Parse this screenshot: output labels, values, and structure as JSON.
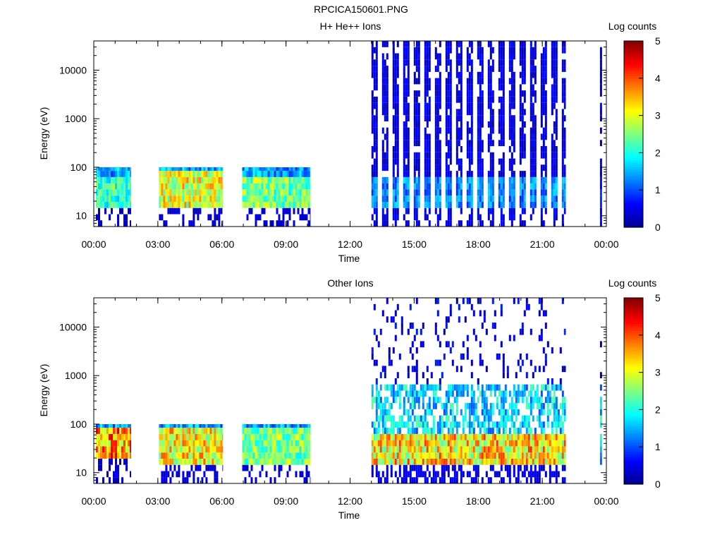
{
  "figure_title": "RPCICA150601.PNG",
  "colorbar": {
    "label": "Log counts",
    "min": 0,
    "max": 5,
    "ticks": [
      "0",
      "1",
      "2",
      "3",
      "4",
      "5"
    ],
    "colors": [
      "#00008f",
      "#0000ff",
      "#0080ff",
      "#00ffff",
      "#80ff80",
      "#ffff00",
      "#ff8000",
      "#ff0000",
      "#800000"
    ]
  },
  "chart_data": [
    {
      "type": "heatmap",
      "title": "H+ He++ Ions",
      "xlabel": "Time",
      "ylabel": "Energy (eV)",
      "xlim": [
        0,
        24
      ],
      "ylim": [
        6,
        40000
      ],
      "yscale": "log",
      "x_ticks": [
        "00:00",
        "03:00",
        "06:00",
        "09:00",
        "12:00",
        "15:00",
        "18:00",
        "21:00",
        "00:00"
      ],
      "y_ticks": [
        "10",
        "100",
        "1000",
        "10000"
      ],
      "intervals": [
        {
          "start": 0.1,
          "end": 1.75,
          "emax": 100,
          "core_low": 15,
          "core_high": 60,
          "peak": 2.6,
          "profile": "low"
        },
        {
          "start": 3.05,
          "end": 6.05,
          "emax": 100,
          "core_low": 13,
          "core_high": 80,
          "peak": 3.6,
          "profile": "low"
        },
        {
          "start": 6.95,
          "end": 10.15,
          "emax": 100,
          "core_low": 14,
          "core_high": 70,
          "peak": 3.0,
          "profile": "low"
        },
        {
          "start": 13.0,
          "end": 22.1,
          "emax": 40000,
          "core_low": 20,
          "core_high": 60,
          "peak": 1.6,
          "profile": "striped"
        },
        {
          "start": 23.7,
          "end": 23.8,
          "emax": 40000,
          "core_low": 20,
          "core_high": 60,
          "peak": 1.0,
          "profile": "striped"
        }
      ]
    },
    {
      "type": "heatmap",
      "title": "Other Ions",
      "xlabel": "Time",
      "ylabel": "Energy (eV)",
      "xlim": [
        0,
        24
      ],
      "ylim": [
        6,
        40000
      ],
      "yscale": "log",
      "x_ticks": [
        "00:00",
        "03:00",
        "06:00",
        "09:00",
        "12:00",
        "15:00",
        "18:00",
        "21:00",
        "00:00"
      ],
      "y_ticks": [
        "10",
        "100",
        "1000",
        "10000"
      ],
      "intervals": [
        {
          "start": 0.1,
          "end": 1.75,
          "emax": 100,
          "core_low": 20,
          "core_high": 90,
          "peak": 4.4,
          "profile": "low"
        },
        {
          "start": 3.05,
          "end": 6.05,
          "emax": 100,
          "core_low": 16,
          "core_high": 90,
          "peak": 3.8,
          "profile": "low"
        },
        {
          "start": 6.95,
          "end": 10.15,
          "emax": 100,
          "core_low": 16,
          "core_high": 80,
          "peak": 3.0,
          "profile": "low"
        },
        {
          "start": 13.0,
          "end": 22.1,
          "emax": 40000,
          "core_low": 20,
          "core_high": 70,
          "peak": 4.0,
          "profile": "sparse"
        },
        {
          "start": 23.7,
          "end": 23.8,
          "emax": 10000,
          "core_low": 20,
          "core_high": 70,
          "peak": 2.0,
          "profile": "sparse"
        }
      ]
    }
  ]
}
